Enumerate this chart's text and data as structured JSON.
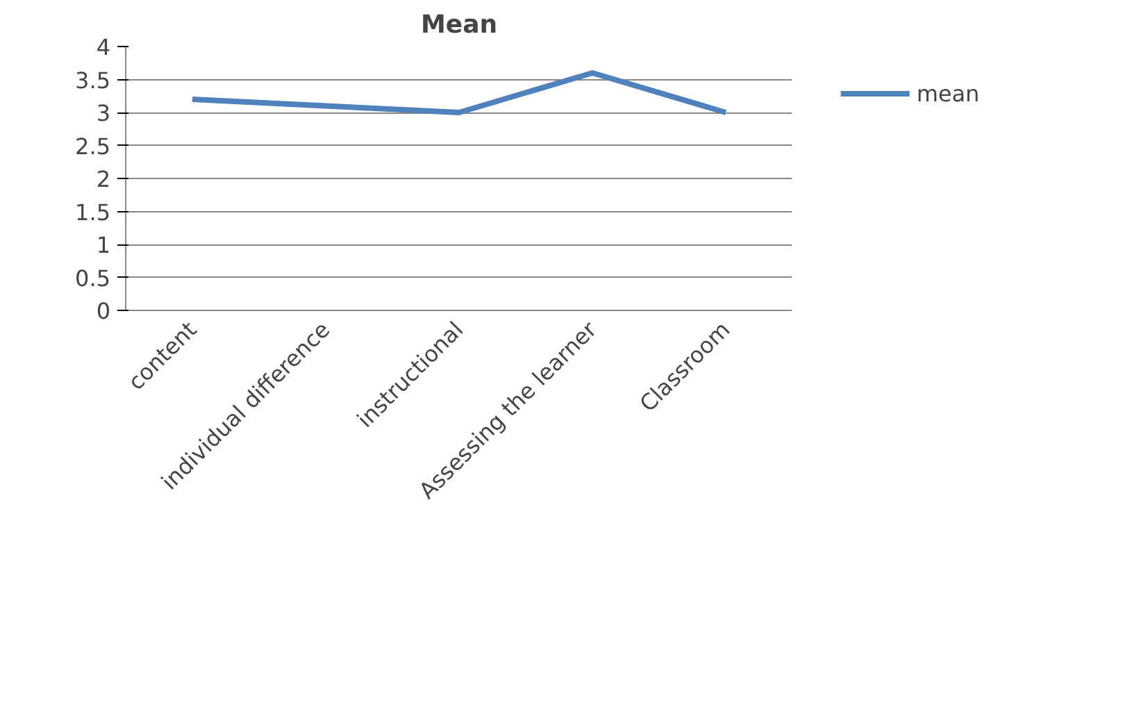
{
  "chart_data": {
    "type": "line",
    "title": "Mean",
    "categories": [
      "content",
      "individual difference",
      "instructional",
      "Assessing the learner",
      "Classroom"
    ],
    "series": [
      {
        "name": "mean",
        "color": "#4f81bd",
        "values": [
          3.2,
          3.1,
          3.0,
          3.6,
          3.0
        ]
      }
    ],
    "ylim": [
      0,
      4
    ],
    "yticks": [
      0,
      0.5,
      1,
      1.5,
      2,
      2.5,
      3,
      3.5,
      4
    ],
    "grid": "y",
    "legend": "right",
    "marker": "none",
    "line_style": "solid"
  }
}
